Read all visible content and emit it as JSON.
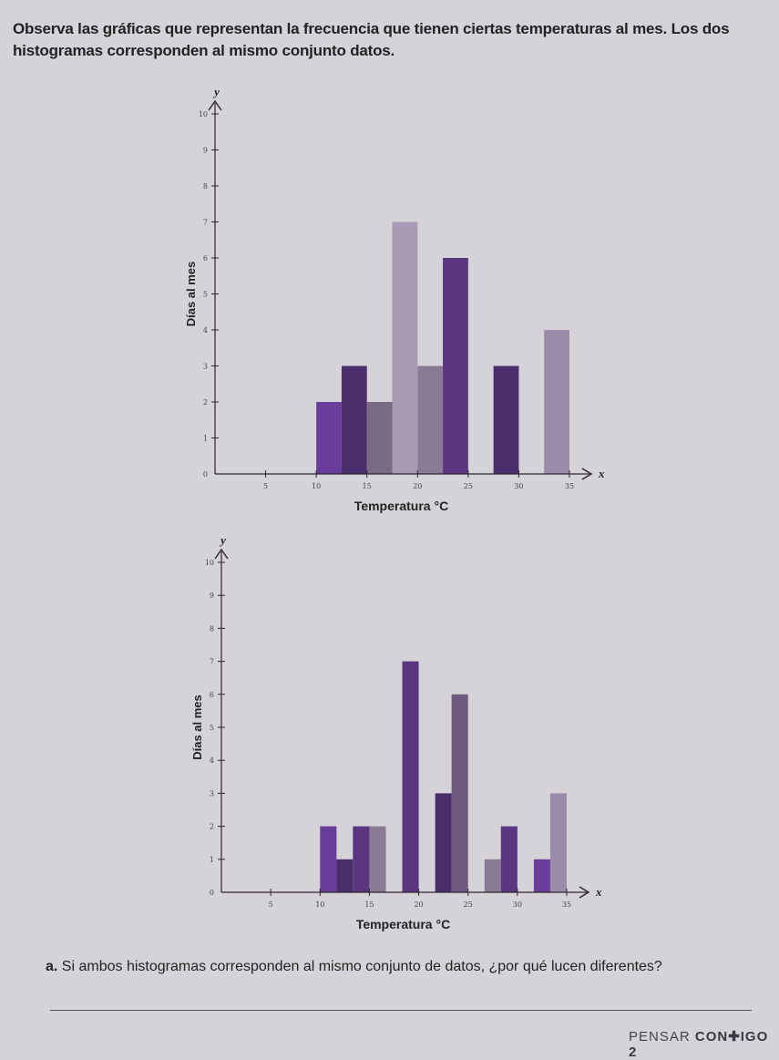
{
  "intro_text": "Observa las gráficas que representan la frecuencia que tienen ciertas temperaturas al mes. Los dos histogramas corresponden al mismo conjunto datos.",
  "question": {
    "letter": "a.",
    "text": "Si ambos histogramas corresponden al mismo conjunto de datos, ¿por qué lucen diferentes?"
  },
  "footer": {
    "prefix": "PENSAR ",
    "brand": "CON✚IGO 2"
  },
  "colors": {
    "purple_bright": "#6a3d9a",
    "purple_dark": "#4a2d6b",
    "purple_gray": "#7a6a85",
    "lavender": "#9a8ba8",
    "lavender_light": "#a99bb5"
  },
  "chart_data": [
    {
      "type": "bar",
      "xlabel": "Temperatura °C",
      "ylabel": "Días al mes",
      "x_axis_symbol": "x",
      "y_axis_symbol": "y",
      "xlim": [
        0,
        35
      ],
      "ylim": [
        0,
        10
      ],
      "xticks": [
        5,
        10,
        15,
        20,
        25,
        30,
        35
      ],
      "yticks": [
        0,
        1,
        2,
        3,
        4,
        5,
        6,
        7,
        8,
        9,
        10
      ],
      "bars": [
        {
          "x0": 10,
          "x1": 12.5,
          "value": 2,
          "color": "#6a3d9a"
        },
        {
          "x0": 12.5,
          "x1": 15,
          "value": 3,
          "color": "#4a2d6b"
        },
        {
          "x0": 15,
          "x1": 17.5,
          "value": 2,
          "color": "#7a6a85"
        },
        {
          "x0": 17.5,
          "x1": 20,
          "value": 7,
          "color": "#a99bb5"
        },
        {
          "x0": 20,
          "x1": 22.5,
          "value": 3,
          "color": "#8a7a96"
        },
        {
          "x0": 22.5,
          "x1": 25,
          "value": 6,
          "color": "#5a3680"
        },
        {
          "x0": 27.5,
          "x1": 30,
          "value": 3,
          "color": "#4a2d6b"
        },
        {
          "x0": 32.5,
          "x1": 35,
          "value": 4,
          "color": "#9a8ba8"
        }
      ]
    },
    {
      "type": "bar",
      "xlabel": "Temperatura °C",
      "ylabel": "Días al mes",
      "x_axis_symbol": "x",
      "y_axis_symbol": "y",
      "xlim": [
        0,
        35
      ],
      "ylim": [
        0,
        10
      ],
      "xticks": [
        5,
        10,
        15,
        20,
        25,
        30,
        35
      ],
      "yticks": [
        0,
        1,
        2,
        3,
        4,
        5,
        6,
        7,
        8,
        9,
        10
      ],
      "bars": [
        {
          "x0": 10,
          "x1": 11.67,
          "value": 2,
          "color": "#6a3d9a"
        },
        {
          "x0": 11.67,
          "x1": 13.33,
          "value": 1,
          "color": "#4a2d6b"
        },
        {
          "x0": 13.33,
          "x1": 15,
          "value": 2,
          "color": "#5a3680"
        },
        {
          "x0": 15,
          "x1": 16.67,
          "value": 2,
          "color": "#8a7a96"
        },
        {
          "x0": 18.33,
          "x1": 20,
          "value": 7,
          "color": "#5a3680"
        },
        {
          "x0": 21.67,
          "x1": 23.33,
          "value": 3,
          "color": "#4a2d6b"
        },
        {
          "x0": 23.33,
          "x1": 25,
          "value": 6,
          "color": "#6e5a80"
        },
        {
          "x0": 26.67,
          "x1": 28.33,
          "value": 1,
          "color": "#8a7a96"
        },
        {
          "x0": 28.33,
          "x1": 30,
          "value": 2,
          "color": "#5a3680"
        },
        {
          "x0": 31.67,
          "x1": 33.33,
          "value": 1,
          "color": "#6a3d9a"
        },
        {
          "x0": 33.33,
          "x1": 35,
          "value": 3,
          "color": "#9a8ba8"
        }
      ]
    }
  ]
}
